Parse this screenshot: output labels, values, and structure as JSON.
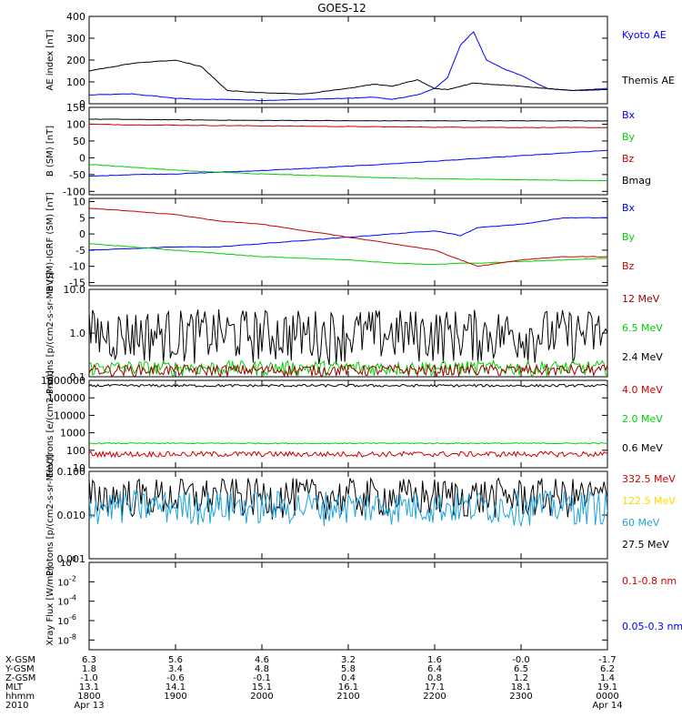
{
  "title": "GOES-12",
  "colors": {
    "black": "#000000",
    "blue": "#0000ff",
    "red": "#cc0000",
    "green": "#00d000",
    "darkred": "#990000",
    "yellow": "#ffd700",
    "cyan": "#1fa3dd",
    "darkblue": "#0000ee"
  },
  "chart_data": [
    {
      "id": "ae",
      "type": "line",
      "ylabel": "AE index [nT]",
      "ylim": [
        0,
        400
      ],
      "yticks": [
        "0",
        "100",
        "200",
        "300",
        "400"
      ],
      "legend": [
        {
          "name": "Kyoto AE",
          "color": "blue"
        },
        {
          "name": "Themis AE",
          "color": "black"
        }
      ],
      "x": [
        18.0,
        18.5,
        19.0,
        19.3,
        19.6,
        20.0,
        20.5,
        21.0,
        21.3,
        21.5,
        21.8,
        22.0,
        22.15,
        22.3,
        22.45,
        22.6,
        22.8,
        23.0,
        23.3,
        23.6,
        24.0
      ],
      "series": [
        {
          "name": "Kyoto AE",
          "color": "blue",
          "values": [
            40,
            45,
            25,
            20,
            20,
            15,
            20,
            25,
            30,
            20,
            40,
            70,
            120,
            270,
            330,
            200,
            160,
            130,
            70,
            60,
            70
          ]
        },
        {
          "name": "Themis AE",
          "color": "black",
          "values": [
            150,
            185,
            200,
            170,
            60,
            50,
            45,
            70,
            90,
            80,
            110,
            70,
            65,
            80,
            95,
            90,
            85,
            80,
            70,
            60,
            65
          ]
        }
      ]
    },
    {
      "id": "bsm",
      "type": "line",
      "ylabel": "B (SM) [nT]",
      "ylim": [
        -110,
        150
      ],
      "yticks": [
        "-100",
        "-50",
        "0",
        "50",
        "100",
        "150"
      ],
      "legend": [
        {
          "name": "Bx",
          "color": "blue"
        },
        {
          "name": "By",
          "color": "green"
        },
        {
          "name": "Bz",
          "color": "red"
        },
        {
          "name": "Bmag",
          "color": "black"
        }
      ],
      "x": [
        18.0,
        18.5,
        19.0,
        19.5,
        20.0,
        20.5,
        21.0,
        21.5,
        22.0,
        22.5,
        23.0,
        23.5,
        24.0
      ],
      "series": [
        {
          "name": "Bx",
          "color": "blue",
          "values": [
            -55,
            -50,
            -48,
            -43,
            -38,
            -32,
            -25,
            -18,
            -10,
            -2,
            6,
            14,
            22
          ]
        },
        {
          "name": "By",
          "color": "green",
          "values": [
            -20,
            -28,
            -37,
            -43,
            -48,
            -52,
            -56,
            -60,
            -62,
            -64,
            -65,
            -67,
            -68
          ]
        },
        {
          "name": "Bz",
          "color": "red",
          "values": [
            100,
            98,
            97,
            96,
            95,
            94,
            93,
            92,
            91,
            91,
            90,
            90,
            90
          ]
        },
        {
          "name": "Bmag",
          "color": "black",
          "values": [
            115,
            114,
            113,
            112,
            111,
            111,
            110,
            110,
            110,
            110,
            110,
            110,
            110
          ]
        }
      ]
    },
    {
      "id": "bigrf",
      "type": "line",
      "ylabel": "B (SM)-IGRF (SM) [nT]",
      "ylim": [
        -16,
        11
      ],
      "yticks": [
        "-15",
        "-10",
        "-5",
        "0",
        "5",
        "10"
      ],
      "legend": [
        {
          "name": "Bx",
          "color": "blue"
        },
        {
          "name": "By",
          "color": "green"
        },
        {
          "name": "Bz",
          "color": "red"
        }
      ],
      "x": [
        18.0,
        18.5,
        19.0,
        19.5,
        20.0,
        20.5,
        21.0,
        21.5,
        22.0,
        22.3,
        22.5,
        23.0,
        23.5,
        24.0
      ],
      "series": [
        {
          "name": "Bx",
          "color": "blue",
          "values": [
            -5,
            -4.5,
            -4,
            -4,
            -3,
            -2,
            -1,
            0,
            1,
            -0.5,
            2,
            3,
            5,
            5
          ]
        },
        {
          "name": "By",
          "color": "green",
          "values": [
            -3,
            -4,
            -5,
            -6,
            -7,
            -7.5,
            -8,
            -9,
            -9.5,
            -9,
            -9,
            -8.5,
            -8,
            -7.5
          ]
        },
        {
          "name": "Bz",
          "color": "red",
          "values": [
            8,
            7,
            6,
            4,
            3,
            1,
            -1,
            -3,
            -5,
            -8,
            -10,
            -8,
            -7,
            -7
          ]
        }
      ]
    },
    {
      "id": "protons_low",
      "type": "line",
      "ylabel": "Protons [p/(cm2-s-sr-MeV)]",
      "yscale": "log",
      "ylim": [
        0.1,
        10
      ],
      "yticks": [
        "0.1",
        "1.0",
        "10.0"
      ],
      "legend": [
        {
          "name": "12 MeV",
          "color": "darkred"
        },
        {
          "name": "6.5 MeV",
          "color": "green"
        },
        {
          "name": "2.4 MeV",
          "color": "black"
        }
      ],
      "series_summary": [
        {
          "name": "2.4 MeV",
          "color": "black",
          "typical": 1.1,
          "spread": [
            0.15,
            4.0
          ]
        },
        {
          "name": "6.5 MeV",
          "color": "green",
          "typical": 0.12,
          "spread": [
            0.1,
            0.25
          ]
        },
        {
          "name": "12 MeV",
          "color": "darkred",
          "typical": 0.1,
          "spread": [
            0.1,
            0.2
          ]
        }
      ]
    },
    {
      "id": "electrons",
      "type": "line",
      "ylabel": "Electrons [e/(cm2-s-sr)]",
      "yscale": "log",
      "ylim": [
        10,
        1000000
      ],
      "yticks": [
        "10",
        "100",
        "1000",
        "10000",
        "100000",
        "1000000"
      ],
      "legend": [
        {
          "name": "4.0 MeV",
          "color": "red"
        },
        {
          "name": "2.0 MeV",
          "color": "green"
        },
        {
          "name": "0.6 MeV",
          "color": "black"
        }
      ],
      "series_summary": [
        {
          "name": "0.6 MeV",
          "color": "black",
          "typical": 500000,
          "spread": [
            300000,
            700000
          ]
        },
        {
          "name": "2.0 MeV",
          "color": "green",
          "typical": 250,
          "spread": [
            220,
            280
          ]
        },
        {
          "name": "4.0 MeV",
          "color": "red",
          "typical": 60,
          "spread": [
            30,
            100
          ]
        }
      ]
    },
    {
      "id": "protons_high",
      "type": "line",
      "ylabel": "Protons [p/(cm2-s-sr-MeV)]",
      "yscale": "log",
      "ylim": [
        0.001,
        0.1
      ],
      "yticks": [
        "0.001",
        "0.010",
        "0.100"
      ],
      "legend": [
        {
          "name": "332.5 MeV",
          "color": "red"
        },
        {
          "name": "122.5 MeV",
          "color": "yellow"
        },
        {
          "name": "60 MeV",
          "color": "cyan"
        },
        {
          "name": "27.5 MeV",
          "color": "black"
        }
      ],
      "series_summary": [
        {
          "name": "27.5 MeV",
          "color": "black",
          "typical": 0.02,
          "spread": [
            0.007,
            0.08
          ]
        },
        {
          "name": "60 MeV",
          "color": "cyan",
          "typical": 0.015,
          "spread": [
            0.005,
            0.04
          ]
        }
      ]
    },
    {
      "id": "xray",
      "type": "line",
      "ylabel": "Xray Flux [W/m2]",
      "yscale": "log",
      "ylim": [
        1e-09,
        1
      ],
      "yticks": [
        "10^-8",
        "10^-6",
        "10^-4",
        "10^-2",
        "10^0"
      ],
      "legend": [
        {
          "name": "0.1-0.8 nm",
          "color": "red"
        },
        {
          "name": "0.05-0.3 nm",
          "color": "blue"
        }
      ],
      "series": []
    }
  ],
  "x_axis": {
    "rows": [
      {
        "label": "X-GSM",
        "values": [
          "6.3",
          "5.6",
          "4.6",
          "3.2",
          "1.6",
          "-0.0",
          "-1.7"
        ]
      },
      {
        "label": "Y-GSM",
        "values": [
          "1.8",
          "3.4",
          "4.8",
          "5.8",
          "6.4",
          "6.5",
          "6.2"
        ]
      },
      {
        "label": "Z-GSM",
        "values": [
          "-1.0",
          "-0.6",
          "-0.1",
          "0.4",
          "0.8",
          "1.2",
          "1.4"
        ]
      },
      {
        "label": "MLT",
        "values": [
          "13.1",
          "14.1",
          "15.1",
          "16.1",
          "17.1",
          "18.1",
          "19.1"
        ]
      },
      {
        "label": "hhmm",
        "values": [
          "1800",
          "1900",
          "2000",
          "2100",
          "2200",
          "2300",
          "0000"
        ]
      }
    ],
    "year": "2010",
    "start_date": "Apr 13",
    "end_date": "Apr 14"
  }
}
